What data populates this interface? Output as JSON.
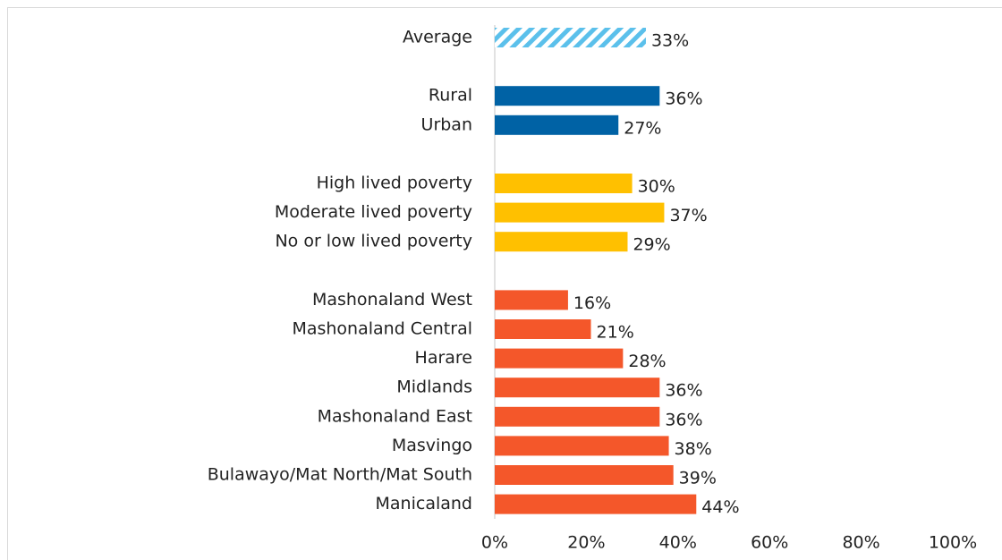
{
  "chart_data": {
    "type": "hbar",
    "categories": [
      "Average",
      null,
      "Rural",
      "Urban",
      null,
      "High lived poverty",
      "Moderate lived poverty",
      "No or low lived poverty",
      null,
      "Mashonaland West",
      "Mashonaland Central",
      "Harare",
      "Midlands",
      "Mashonaland East",
      "Masvingo",
      "Bulawayo/Mat North/Mat South",
      "Manicaland"
    ],
    "values": [
      33,
      null,
      36,
      27,
      null,
      30,
      37,
      29,
      null,
      16,
      21,
      28,
      36,
      36,
      38,
      39,
      44
    ],
    "value_labels": [
      "33%",
      null,
      "36%",
      "27%",
      null,
      "30%",
      "37%",
      "29%",
      null,
      "16%",
      "21%",
      "28%",
      "36%",
      "36%",
      "38%",
      "39%",
      "44%"
    ],
    "colors": [
      "#5bc0eb",
      null,
      "#0062a5",
      "#0062a5",
      null,
      "#ffc000",
      "#ffc000",
      "#ffc000",
      null,
      "#f4572a",
      "#f4572a",
      "#f4572a",
      "#f4572a",
      "#f4572a",
      "#f4572a",
      "#f4572a",
      "#f4572a"
    ],
    "hatched": [
      true,
      false,
      false,
      false,
      false,
      false,
      false,
      false,
      false,
      false,
      false,
      false,
      false,
      false,
      false,
      false,
      false
    ],
    "xlim": [
      0,
      100
    ],
    "xticks": [
      {
        "value": 0,
        "label": "0%"
      },
      {
        "value": 20,
        "label": "20%"
      },
      {
        "value": 40,
        "label": "40%"
      },
      {
        "value": 60,
        "label": "60%"
      },
      {
        "value": 80,
        "label": "80%"
      },
      {
        "value": 100,
        "label": "100%"
      }
    ]
  }
}
